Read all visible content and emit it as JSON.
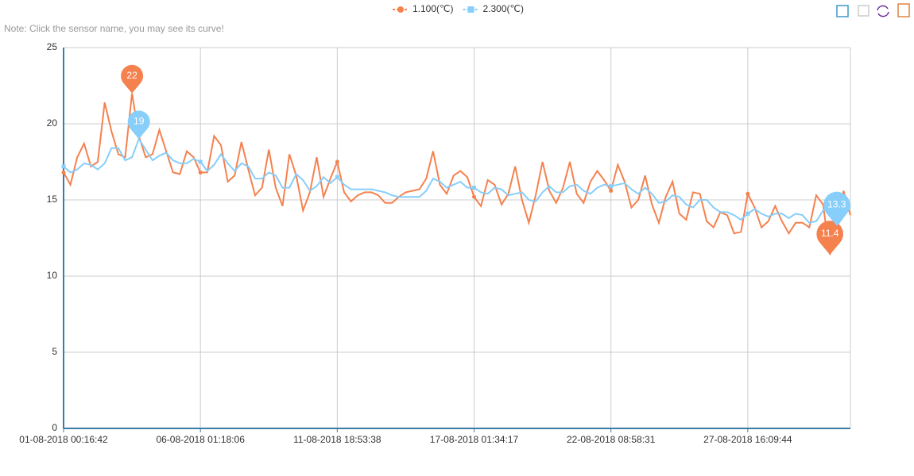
{
  "chart_data": {
    "type": "line",
    "note": "Note: Click the sensor name, you may see its curve!",
    "categories": [
      "01-08-2018 00:16:42",
      null,
      null,
      null,
      null,
      null,
      null,
      null,
      null,
      null,
      null,
      null,
      null,
      null,
      null,
      null,
      null,
      null,
      null,
      null,
      "06-08-2018 01:18:06",
      null,
      null,
      null,
      null,
      null,
      null,
      null,
      null,
      null,
      null,
      null,
      null,
      null,
      null,
      null,
      null,
      null,
      null,
      null,
      "11-08-2018 18:53:38",
      null,
      null,
      null,
      null,
      null,
      null,
      null,
      null,
      null,
      null,
      null,
      null,
      null,
      null,
      null,
      null,
      null,
      null,
      null,
      "17-08-2018 01:34:17",
      null,
      null,
      null,
      null,
      null,
      null,
      null,
      null,
      null,
      null,
      null,
      null,
      null,
      null,
      null,
      null,
      null,
      null,
      null,
      "22-08-2018 08:58:31",
      null,
      null,
      null,
      null,
      null,
      null,
      null,
      null,
      null,
      null,
      null,
      null,
      null,
      null,
      null,
      null,
      null,
      null,
      null,
      "27-08-2018 16:09:44",
      null,
      null,
      null,
      null,
      null,
      null,
      null,
      null,
      null,
      null,
      null,
      null,
      null,
      null,
      null
    ],
    "series": [
      {
        "name": "1.100(℃)",
        "color": "#f5814f",
        "mark_points": [
          22,
          11.4
        ],
        "values": [
          16.8,
          16.0,
          17.8,
          18.7,
          17.2,
          17.5,
          21.4,
          19.5,
          18.0,
          17.8,
          22,
          19.2,
          17.8,
          18.0,
          19.6,
          18.2,
          16.8,
          16.7,
          18.2,
          17.8,
          16.8,
          16.8,
          19.2,
          18.6,
          16.2,
          16.6,
          18.8,
          17.0,
          15.3,
          15.8,
          18.3,
          15.8,
          14.6,
          18.0,
          16.6,
          14.3,
          15.5,
          17.8,
          15.2,
          16.4,
          17.5,
          15.5,
          14.9,
          15.3,
          15.5,
          15.5,
          15.3,
          14.8,
          14.8,
          15.2,
          15.5,
          15.6,
          15.7,
          16.4,
          18.2,
          16.0,
          15.4,
          16.6,
          16.9,
          16.5,
          15.2,
          14.6,
          16.3,
          16.0,
          14.7,
          15.4,
          17.2,
          15.0,
          13.5,
          15.3,
          17.5,
          15.6,
          14.8,
          15.8,
          17.5,
          15.4,
          14.8,
          16.2,
          16.9,
          16.3,
          15.6,
          17.3,
          16.2,
          14.5,
          15.0,
          16.6,
          14.7,
          13.5,
          15.2,
          16.2,
          14.1,
          13.7,
          15.5,
          15.4,
          13.6,
          13.2,
          14.2,
          14.0,
          12.8,
          12.9,
          15.4,
          14.5,
          13.2,
          13.6,
          14.6,
          13.6,
          12.8,
          13.5,
          13.5,
          13.2,
          15.3,
          14.7,
          11.4,
          13.4,
          15.6,
          14.0
        ]
      },
      {
        "name": "2.300(℃)",
        "color": "#87cefa",
        "mark_points": [
          19,
          13.3
        ],
        "values": [
          17.2,
          16.8,
          17.0,
          17.4,
          17.3,
          17.0,
          17.4,
          18.4,
          18.4,
          17.6,
          17.8,
          19,
          18.3,
          17.6,
          17.9,
          18.1,
          17.6,
          17.4,
          17.4,
          17.7,
          17.5,
          16.9,
          17.3,
          18.0,
          17.4,
          16.9,
          17.4,
          17.2,
          16.4,
          16.4,
          16.8,
          16.6,
          15.8,
          15.8,
          16.7,
          16.3,
          15.6,
          15.9,
          16.5,
          16.1,
          16.5,
          16.0,
          15.7,
          15.7,
          15.7,
          15.7,
          15.6,
          15.5,
          15.3,
          15.2,
          15.2,
          15.2,
          15.2,
          15.6,
          16.4,
          16.2,
          15.8,
          16.0,
          16.2,
          15.8,
          15.8,
          15.5,
          15.4,
          15.8,
          15.7,
          15.3,
          15.4,
          15.5,
          15.0,
          14.9,
          15.5,
          15.9,
          15.5,
          15.5,
          15.9,
          16.0,
          15.6,
          15.4,
          15.8,
          16.0,
          15.9,
          16.0,
          16.1,
          15.7,
          15.4,
          15.8,
          15.4,
          14.8,
          14.9,
          15.3,
          15.2,
          14.7,
          14.5,
          15.0,
          15.0,
          14.5,
          14.2,
          14.2,
          14.0,
          13.7,
          14.1,
          14.4,
          14.1,
          13.9,
          14.1,
          14.1,
          13.8,
          14.1,
          14.0,
          13.5,
          13.6,
          14.3,
          14.7,
          13.3,
          13.9,
          14.6
        ]
      }
    ],
    "ylim": [
      0,
      25
    ],
    "yticks": [
      0,
      5,
      10,
      15,
      20,
      25
    ],
    "grid": true
  }
}
